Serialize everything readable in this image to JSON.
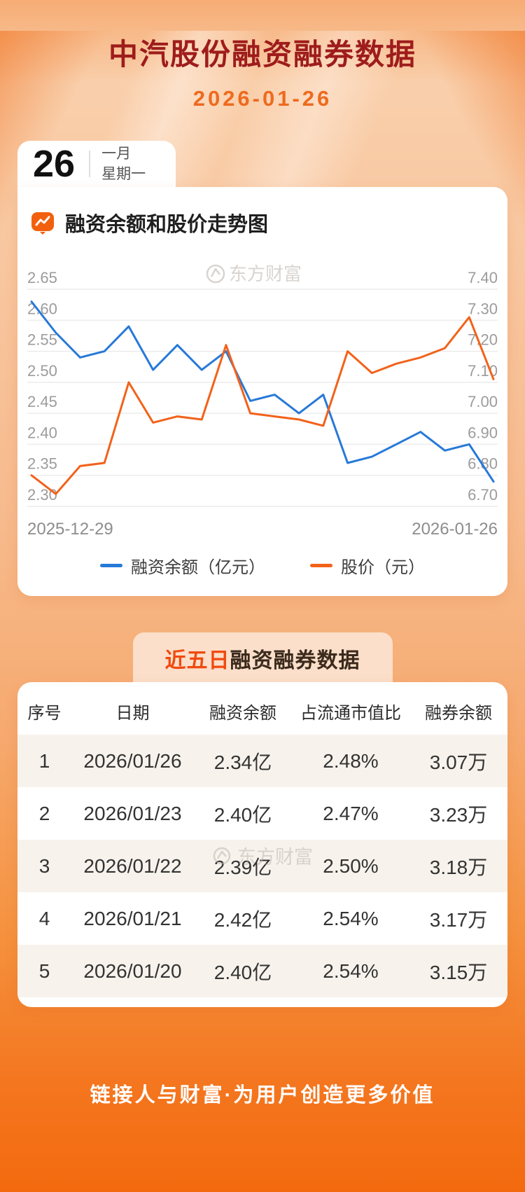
{
  "page": {
    "title": "中汽股份融资融券数据",
    "date": "2026-01-26"
  },
  "date_badge": {
    "day": "26",
    "month": "一月",
    "weekday": "星期一"
  },
  "chart_card": {
    "title": "融资余额和股价走势图",
    "watermark": "东方财富"
  },
  "chart_data": {
    "type": "line",
    "title": "融资余额和股价走势图",
    "grid": true,
    "legend_position": "bottom",
    "x_axis": {
      "start_label": "2025-12-29",
      "end_label": "2026-01-26"
    },
    "left_axis": {
      "label": "融资余额（亿元）",
      "range": [
        2.3,
        2.65
      ],
      "ticks": [
        "2.65",
        "2.60",
        "2.55",
        "2.50",
        "2.45",
        "2.40",
        "2.35",
        "2.30"
      ]
    },
    "right_axis": {
      "label": "股价（元）",
      "range": [
        6.7,
        7.4
      ],
      "ticks": [
        "7.40",
        "7.30",
        "7.20",
        "7.10",
        "7.00",
        "6.90",
        "6.80",
        "6.70"
      ]
    },
    "series": [
      {
        "name": "融资余额（亿元）",
        "axis": "left",
        "color": "#2779d8",
        "values": [
          2.63,
          2.58,
          2.54,
          2.55,
          2.59,
          2.52,
          2.56,
          2.52,
          2.55,
          2.47,
          2.48,
          2.45,
          2.48,
          2.37,
          2.38,
          2.4,
          2.42,
          2.39,
          2.4,
          2.34
        ]
      },
      {
        "name": "股价（元）",
        "axis": "right",
        "color": "#f2621a",
        "values": [
          6.8,
          6.74,
          6.83,
          6.84,
          7.1,
          6.97,
          6.99,
          6.98,
          7.22,
          7.0,
          6.99,
          6.98,
          6.96,
          7.2,
          7.13,
          7.16,
          7.18,
          7.21,
          7.31,
          7.11
        ]
      }
    ]
  },
  "table_card": {
    "title_highlight": "近五日",
    "title_rest": "融资融券数据",
    "watermark": "东方财富",
    "columns": [
      "序号",
      "日期",
      "融资余额",
      "占流通市值比",
      "融券余额"
    ],
    "rows": [
      [
        "1",
        "2026/01/26",
        "2.34亿",
        "2.48%",
        "3.07万"
      ],
      [
        "2",
        "2026/01/23",
        "2.40亿",
        "2.47%",
        "3.23万"
      ],
      [
        "3",
        "2026/01/22",
        "2.39亿",
        "2.50%",
        "3.18万"
      ],
      [
        "4",
        "2026/01/21",
        "2.42亿",
        "2.54%",
        "3.17万"
      ],
      [
        "5",
        "2026/01/20",
        "2.40亿",
        "2.54%",
        "3.15万"
      ]
    ]
  },
  "footer": {
    "slogan": "链接人与财富·为用户创造更多价值"
  },
  "colors": {
    "title_red": "#9e1c1c",
    "date_orange": "#ee6a1f",
    "pill_highlight_red": "#f1490f",
    "pill_background": "#fbdfca",
    "line_blue": "#2779d8",
    "line_orange": "#f2621a",
    "footer_orange": "#f36a0e",
    "alt_row_background": "#f7f3ec"
  }
}
